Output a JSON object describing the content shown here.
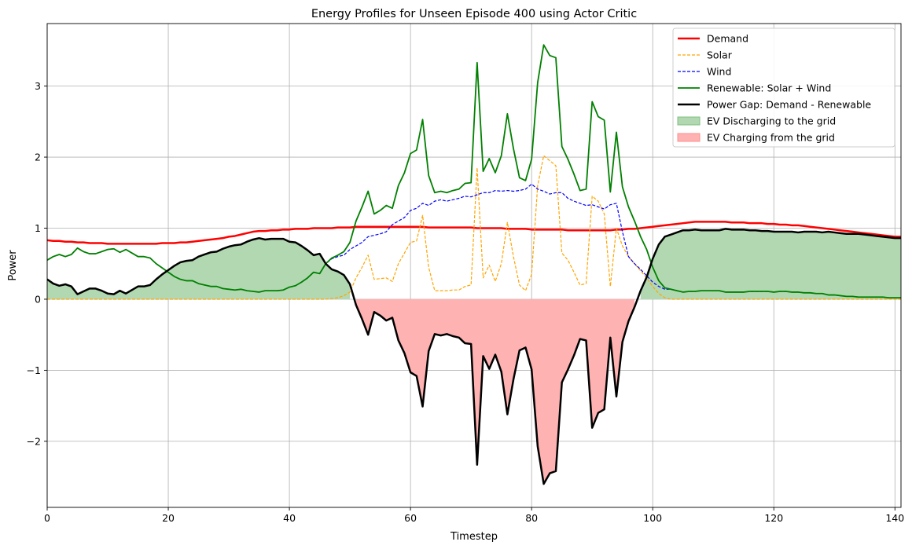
{
  "chart_data": {
    "type": "line",
    "title": "Energy Profiles for Unseen Episode 400 using Actor Critic",
    "xlabel": "Timestep",
    "ylabel": "Power",
    "xlim": [
      0,
      141
    ],
    "ylim": [
      -2.93,
      3.88
    ],
    "xticks": [
      0,
      20,
      40,
      60,
      80,
      100,
      120,
      140
    ],
    "yticks": [
      -2,
      -1,
      0,
      1,
      2,
      3
    ],
    "xtick_labels": [
      "0",
      "20",
      "40",
      "60",
      "80",
      "100",
      "120",
      "140"
    ],
    "ytick_labels": [
      "−2",
      "−1",
      "0",
      "1",
      "2",
      "3"
    ],
    "grid": true,
    "legend_position": "top-right",
    "colors": {
      "demand": "#ff0000",
      "solar": "#ffa500",
      "wind": "#0000ff",
      "renewable": "#008000",
      "gap": "#000000",
      "discharge_fill": "#b2d8b2",
      "charge_fill": "#ffb2b2"
    },
    "legend": [
      {
        "label": "Demand",
        "kind": "line",
        "color": "#ff0000",
        "dash": "",
        "width": 2.5
      },
      {
        "label": "Solar",
        "kind": "line",
        "color": "#ffa500",
        "dash": "4,2",
        "width": 1.2
      },
      {
        "label": "Wind",
        "kind": "line",
        "color": "#0000ff",
        "dash": "4,2",
        "width": 1.2
      },
      {
        "label": "Renewable: Solar + Wind",
        "kind": "line",
        "color": "#008000",
        "dash": "",
        "width": 1.8
      },
      {
        "label": "Power Gap: Demand - Renewable",
        "kind": "line",
        "color": "#000000",
        "dash": "",
        "width": 2.5
      },
      {
        "label": "EV Discharging to the grid",
        "kind": "patch",
        "color": "#b2d8b2",
        "edge": "#7fbf7f"
      },
      {
        "label": "EV Charging from the grid",
        "kind": "patch",
        "color": "#ffb2b2",
        "edge": "#ff8c8c"
      }
    ],
    "x": [
      0,
      1,
      2,
      3,
      4,
      5,
      6,
      7,
      8,
      9,
      10,
      11,
      12,
      13,
      14,
      15,
      16,
      17,
      18,
      19,
      20,
      21,
      22,
      23,
      24,
      25,
      26,
      27,
      28,
      29,
      30,
      31,
      32,
      33,
      34,
      35,
      36,
      37,
      38,
      39,
      40,
      41,
      42,
      43,
      44,
      45,
      46,
      47,
      48,
      49,
      50,
      51,
      52,
      53,
      54,
      55,
      56,
      57,
      58,
      59,
      60,
      61,
      62,
      63,
      64,
      65,
      66,
      67,
      68,
      69,
      70,
      71,
      72,
      73,
      74,
      75,
      76,
      77,
      78,
      79,
      80,
      81,
      82,
      83,
      84,
      85,
      86,
      87,
      88,
      89,
      90,
      91,
      92,
      93,
      94,
      95,
      96,
      97,
      98,
      99,
      100,
      101,
      102,
      103,
      104,
      105,
      106,
      107,
      108,
      109,
      110,
      111,
      112,
      113,
      114,
      115,
      116,
      117,
      118,
      119,
      120,
      121,
      122,
      123,
      124,
      125,
      126,
      127,
      128,
      129,
      130,
      131,
      132,
      133,
      134,
      135,
      136,
      137,
      138,
      139,
      140,
      141
    ],
    "series": [
      {
        "name": "Demand",
        "key": "demand",
        "values": [
          0.83,
          0.82,
          0.82,
          0.81,
          0.81,
          0.8,
          0.8,
          0.79,
          0.79,
          0.79,
          0.78,
          0.78,
          0.78,
          0.78,
          0.78,
          0.78,
          0.78,
          0.78,
          0.78,
          0.79,
          0.79,
          0.79,
          0.8,
          0.8,
          0.81,
          0.82,
          0.83,
          0.84,
          0.85,
          0.86,
          0.88,
          0.89,
          0.91,
          0.93,
          0.95,
          0.96,
          0.96,
          0.97,
          0.97,
          0.98,
          0.98,
          0.99,
          0.99,
          0.99,
          1.0,
          1.0,
          1.0,
          1.0,
          1.01,
          1.01,
          1.01,
          1.02,
          1.02,
          1.02,
          1.02,
          1.02,
          1.02,
          1.02,
          1.02,
          1.02,
          1.02,
          1.02,
          1.02,
          1.01,
          1.01,
          1.01,
          1.01,
          1.01,
          1.01,
          1.01,
          1.01,
          1.0,
          1.0,
          1.0,
          1.0,
          1.0,
          0.99,
          0.99,
          0.99,
          0.99,
          0.98,
          0.98,
          0.98,
          0.98,
          0.98,
          0.98,
          0.97,
          0.97,
          0.97,
          0.97,
          0.97,
          0.97,
          0.97,
          0.97,
          0.98,
          0.98,
          0.99,
          0.99,
          1.0,
          1.01,
          1.02,
          1.03,
          1.04,
          1.05,
          1.06,
          1.07,
          1.08,
          1.09,
          1.09,
          1.09,
          1.09,
          1.09,
          1.09,
          1.08,
          1.08,
          1.08,
          1.07,
          1.07,
          1.07,
          1.06,
          1.06,
          1.05,
          1.05,
          1.04,
          1.04,
          1.03,
          1.02,
          1.01,
          1.0,
          0.99,
          0.98,
          0.97,
          0.96,
          0.95,
          0.94,
          0.93,
          0.92,
          0.91,
          0.9,
          0.89,
          0.88,
          0.88
        ]
      },
      {
        "name": "Solar",
        "key": "solar",
        "values": [
          0,
          0,
          0,
          0,
          0,
          0,
          0,
          0,
          0,
          0,
          0,
          0,
          0,
          0,
          0,
          0,
          0,
          0,
          0,
          0,
          0,
          0,
          0,
          0,
          0,
          0,
          0,
          0,
          0,
          0,
          0,
          0,
          0,
          0,
          0,
          0,
          0,
          0,
          0,
          0,
          0,
          0,
          0,
          0,
          0,
          0,
          0,
          0.01,
          0.02,
          0.05,
          0.1,
          0.3,
          0.45,
          0.62,
          0.28,
          0.29,
          0.3,
          0.25,
          0.5,
          0.65,
          0.8,
          0.82,
          1.18,
          0.45,
          0.12,
          0.12,
          0.12,
          0.13,
          0.13,
          0.18,
          0.2,
          1.85,
          0.3,
          0.48,
          0.25,
          0.5,
          1.08,
          0.6,
          0.2,
          0.12,
          0.35,
          1.6,
          2.02,
          1.95,
          1.88,
          0.65,
          0.55,
          0.38,
          0.2,
          0.22,
          1.45,
          1.38,
          1.2,
          0.18,
          1.0,
          0.75,
          0.6,
          0.5,
          0.4,
          0.3,
          0.18,
          0.08,
          0.02,
          0,
          0,
          0,
          0,
          0,
          0,
          0,
          0,
          0,
          0,
          0,
          0,
          0,
          0,
          0,
          0,
          0,
          0,
          0,
          0,
          0,
          0,
          0,
          0,
          0,
          0,
          0,
          0,
          0,
          0,
          0,
          0,
          0,
          0,
          0,
          0,
          0,
          0,
          0
        ]
      },
      {
        "name": "Wind",
        "key": "wind",
        "values": [
          0.55,
          0.6,
          0.63,
          0.6,
          0.63,
          0.72,
          0.67,
          0.64,
          0.64,
          0.67,
          0.7,
          0.71,
          0.66,
          0.7,
          0.65,
          0.6,
          0.6,
          0.58,
          0.5,
          0.44,
          0.38,
          0.32,
          0.28,
          0.26,
          0.26,
          0.22,
          0.2,
          0.18,
          0.18,
          0.15,
          0.14,
          0.13,
          0.14,
          0.12,
          0.11,
          0.1,
          0.12,
          0.12,
          0.12,
          0.13,
          0.17,
          0.19,
          0.24,
          0.3,
          0.38,
          0.36,
          0.5,
          0.57,
          0.6,
          0.62,
          0.7,
          0.75,
          0.8,
          0.88,
          0.9,
          0.92,
          0.95,
          1.05,
          1.1,
          1.15,
          1.25,
          1.28,
          1.35,
          1.32,
          1.38,
          1.4,
          1.38,
          1.4,
          1.42,
          1.45,
          1.44,
          1.47,
          1.5,
          1.5,
          1.53,
          1.52,
          1.53,
          1.52,
          1.53,
          1.55,
          1.62,
          1.55,
          1.52,
          1.48,
          1.5,
          1.5,
          1.42,
          1.38,
          1.35,
          1.32,
          1.33,
          1.3,
          1.27,
          1.33,
          1.35,
          0.95,
          0.6,
          0.5,
          0.42,
          0.33,
          0.24,
          0.18,
          0.14,
          0.14,
          0.12,
          0.1,
          0.11,
          0.11,
          0.12,
          0.12,
          0.12,
          0.12,
          0.1,
          0.1,
          0.1,
          0.1,
          0.11,
          0.11,
          0.11,
          0.11,
          0.1,
          0.11,
          0.11,
          0.1,
          0.1,
          0.09,
          0.09,
          0.08,
          0.08,
          0.06,
          0.06,
          0.05,
          0.04,
          0.04,
          0.03,
          0.03,
          0.03,
          0.03,
          0.03,
          0.02,
          0.02,
          0.02
        ]
      },
      {
        "name": "Renewable: Solar + Wind",
        "key": "renewable",
        "values": [
          0.55,
          0.6,
          0.63,
          0.6,
          0.63,
          0.72,
          0.67,
          0.64,
          0.64,
          0.67,
          0.7,
          0.71,
          0.66,
          0.7,
          0.65,
          0.6,
          0.6,
          0.58,
          0.5,
          0.44,
          0.38,
          0.32,
          0.28,
          0.26,
          0.26,
          0.22,
          0.2,
          0.18,
          0.18,
          0.15,
          0.14,
          0.13,
          0.14,
          0.12,
          0.11,
          0.1,
          0.12,
          0.12,
          0.12,
          0.13,
          0.17,
          0.19,
          0.24,
          0.3,
          0.38,
          0.36,
          0.5,
          0.58,
          0.62,
          0.67,
          0.8,
          1.1,
          1.3,
          1.52,
          1.2,
          1.25,
          1.32,
          1.28,
          1.6,
          1.78,
          2.05,
          2.1,
          2.53,
          1.74,
          1.5,
          1.52,
          1.5,
          1.53,
          1.55,
          1.63,
          1.64,
          3.33,
          1.8,
          1.98,
          1.78,
          2.02,
          2.61,
          2.12,
          1.71,
          1.67,
          1.97,
          3.05,
          3.58,
          3.43,
          3.4,
          2.15,
          1.97,
          1.76,
          1.53,
          1.55,
          2.78,
          2.57,
          2.52,
          1.51,
          2.35,
          1.58,
          1.3,
          1.1,
          0.88,
          0.7,
          0.45,
          0.26,
          0.16,
          0.14,
          0.12,
          0.1,
          0.11,
          0.11,
          0.12,
          0.12,
          0.12,
          0.12,
          0.1,
          0.1,
          0.1,
          0.1,
          0.11,
          0.11,
          0.11,
          0.11,
          0.1,
          0.11,
          0.11,
          0.1,
          0.1,
          0.09,
          0.09,
          0.08,
          0.08,
          0.06,
          0.06,
          0.05,
          0.04,
          0.04,
          0.03,
          0.03,
          0.03,
          0.03,
          0.03,
          0.02,
          0.02,
          0.02
        ]
      },
      {
        "name": "Power Gap: Demand - Renewable",
        "key": "gap",
        "values": [
          0.28,
          0.22,
          0.19,
          0.21,
          0.18,
          0.07,
          0.11,
          0.15,
          0.15,
          0.12,
          0.08,
          0.07,
          0.12,
          0.08,
          0.13,
          0.18,
          0.18,
          0.2,
          0.28,
          0.35,
          0.41,
          0.47,
          0.52,
          0.54,
          0.55,
          0.6,
          0.63,
          0.66,
          0.67,
          0.71,
          0.74,
          0.76,
          0.77,
          0.81,
          0.84,
          0.86,
          0.84,
          0.85,
          0.85,
          0.85,
          0.81,
          0.8,
          0.75,
          0.69,
          0.62,
          0.64,
          0.5,
          0.42,
          0.39,
          0.34,
          0.21,
          -0.08,
          -0.28,
          -0.5,
          -0.18,
          -0.23,
          -0.3,
          -0.26,
          -0.58,
          -0.76,
          -1.03,
          -1.08,
          -1.51,
          -0.73,
          -0.49,
          -0.51,
          -0.49,
          -0.52,
          -0.54,
          -0.62,
          -0.63,
          -2.33,
          -0.8,
          -0.98,
          -0.78,
          -1.02,
          -1.62,
          -1.13,
          -0.72,
          -0.68,
          -0.99,
          -2.07,
          -2.6,
          -2.45,
          -2.42,
          -1.17,
          -0.99,
          -0.79,
          -0.56,
          -0.58,
          -1.81,
          -1.6,
          -1.55,
          -0.54,
          -1.37,
          -0.6,
          -0.31,
          -0.11,
          0.12,
          0.31,
          0.57,
          0.77,
          0.88,
          0.91,
          0.94,
          0.97,
          0.97,
          0.98,
          0.97,
          0.97,
          0.97,
          0.97,
          0.99,
          0.98,
          0.98,
          0.98,
          0.97,
          0.97,
          0.96,
          0.96,
          0.95,
          0.95,
          0.95,
          0.95,
          0.94,
          0.95,
          0.95,
          0.95,
          0.94,
          0.95,
          0.94,
          0.93,
          0.92,
          0.92,
          0.92,
          0.91,
          0.9,
          0.89,
          0.88,
          0.87,
          0.86,
          0.86
        ]
      }
    ]
  }
}
